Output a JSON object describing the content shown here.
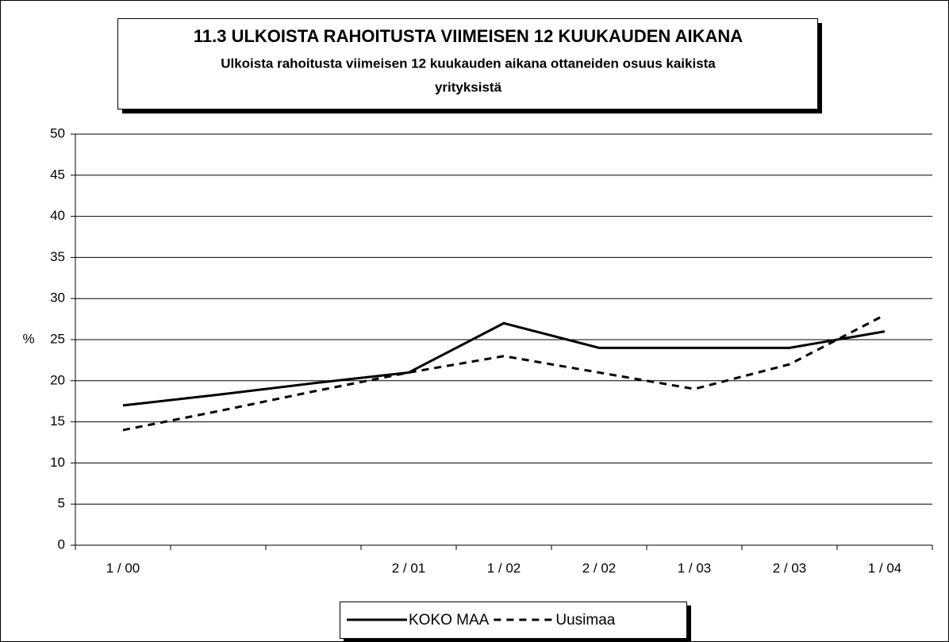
{
  "chart_data": {
    "type": "line",
    "title": "11.3 ULKOISTA RAHOITUSTA VIIMEISEN 12 KUUKAUDEN AIKANA",
    "subtitle": [
      "Ulkoista rahoitusta viimeisen 12 kuukauden aikana ottaneiden osuus kaikista",
      "yrityksistä"
    ],
    "y_label": "%",
    "categories": [
      "1 / 00",
      null,
      null,
      "2 / 01",
      "1 / 02",
      "2 / 02",
      "1 / 03",
      "2 / 03",
      "1 / 04"
    ],
    "series": [
      {
        "name": "KOKO MAA",
        "color": "#000000",
        "line_style": "solid",
        "values": [
          17,
          18.3,
          19.7,
          21,
          27,
          24,
          24,
          24,
          26
        ]
      },
      {
        "name": "Uusimaa",
        "color": "#000000",
        "line_style": "dashed",
        "values": [
          14,
          16.3,
          18.7,
          21,
          23,
          21,
          19,
          22,
          28
        ]
      }
    ],
    "ylim": [
      0,
      50
    ],
    "yticks": [
      0,
      5,
      10,
      15,
      20,
      25,
      30,
      35,
      40,
      45,
      50
    ],
    "grid": true,
    "legend": "bottom"
  }
}
